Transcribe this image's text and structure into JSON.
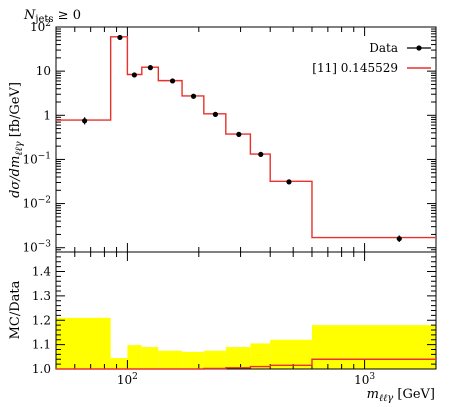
{
  "chart_data": {
    "type": "line",
    "title": "",
    "corner_label": "N_jets ≥ 0",
    "xlabel": "m_ℓℓγ [GeV]",
    "x_scale": "log",
    "xlim": [
      50,
      2000
    ],
    "x_tick_labels": [
      "10^2",
      "10^3"
    ],
    "main_panel": {
      "ylabel": "dσ/dm_ℓℓγ [fb/GeV]",
      "y_scale": "log",
      "ylim": [
        0.0008,
        100
      ],
      "y_tick_labels": [
        "10^-3",
        "10^-2",
        "10^-1",
        "1",
        "10",
        "10^2"
      ],
      "legend_position": "top-right",
      "series": [
        {
          "name": "Data",
          "style": "points with error bars",
          "color": "#000000",
          "points": [
            {
              "x": 66,
              "y": 0.75,
              "yerr_low": 0.62,
              "yerr_high": 0.9
            },
            {
              "x": 93,
              "y": 58,
              "yerr_low": 55,
              "yerr_high": 61
            },
            {
              "x": 107,
              "y": 8.2,
              "yerr_low": 7.6,
              "yerr_high": 8.8
            },
            {
              "x": 125,
              "y": 12,
              "yerr_low": 11.3,
              "yerr_high": 12.7
            },
            {
              "x": 155,
              "y": 6.0,
              "yerr_low": 5.6,
              "yerr_high": 6.4
            },
            {
              "x": 190,
              "y": 2.7,
              "yerr_low": 2.5,
              "yerr_high": 2.9
            },
            {
              "x": 235,
              "y": 1.05,
              "yerr_low": 0.97,
              "yerr_high": 1.13
            },
            {
              "x": 295,
              "y": 0.37,
              "yerr_low": 0.34,
              "yerr_high": 0.4
            },
            {
              "x": 365,
              "y": 0.13,
              "yerr_low": 0.12,
              "yerr_high": 0.14
            },
            {
              "x": 480,
              "y": 0.031,
              "yerr_low": 0.028,
              "yerr_high": 0.034
            },
            {
              "x": 1400,
              "y": 0.0016,
              "yerr_low": 0.00135,
              "yerr_high": 0.0019
            }
          ]
        },
        {
          "name": "[11] 0.145529",
          "style": "step",
          "color": "#e8312b",
          "bins": [
            {
              "lo": 50,
              "hi": 85,
              "y": 0.78
            },
            {
              "lo": 85,
              "hi": 100,
              "y": 60
            },
            {
              "lo": 100,
              "hi": 115,
              "y": 8.4
            },
            {
              "lo": 115,
              "hi": 135,
              "y": 12.3
            },
            {
              "lo": 135,
              "hi": 170,
              "y": 6.1
            },
            {
              "lo": 170,
              "hi": 210,
              "y": 2.75
            },
            {
              "lo": 210,
              "hi": 260,
              "y": 1.08
            },
            {
              "lo": 260,
              "hi": 330,
              "y": 0.375
            },
            {
              "lo": 330,
              "hi": 400,
              "y": 0.132
            },
            {
              "lo": 400,
              "hi": 600,
              "y": 0.032
            },
            {
              "lo": 600,
              "hi": 2000,
              "y": 0.0017
            }
          ]
        }
      ]
    },
    "ratio_panel": {
      "ylabel": "MC/Data",
      "ylim": [
        1.0,
        1.48
      ],
      "y_tick_labels": [
        "1.0",
        "1.1",
        "1.2",
        "1.3",
        "1.4"
      ],
      "band_color": "#ffff00",
      "band": [
        {
          "lo": 50,
          "hi": 85,
          "up": 1.21
        },
        {
          "lo": 85,
          "hi": 100,
          "up": 1.045
        },
        {
          "lo": 100,
          "hi": 115,
          "up": 1.098
        },
        {
          "lo": 115,
          "hi": 135,
          "up": 1.09
        },
        {
          "lo": 135,
          "hi": 170,
          "up": 1.075
        },
        {
          "lo": 170,
          "hi": 210,
          "up": 1.07
        },
        {
          "lo": 210,
          "hi": 260,
          "up": 1.075
        },
        {
          "lo": 260,
          "hi": 330,
          "up": 1.09
        },
        {
          "lo": 330,
          "hi": 400,
          "up": 1.105
        },
        {
          "lo": 400,
          "hi": 600,
          "up": 1.12
        },
        {
          "lo": 600,
          "hi": 2000,
          "up": 1.18
        }
      ],
      "ratio_line": [
        {
          "lo": 50,
          "hi": 85,
          "y": 1.0
        },
        {
          "lo": 85,
          "hi": 100,
          "y": 1.0
        },
        {
          "lo": 100,
          "hi": 115,
          "y": 1.0
        },
        {
          "lo": 115,
          "hi": 135,
          "y": 1.0
        },
        {
          "lo": 135,
          "hi": 170,
          "y": 1.0
        },
        {
          "lo": 170,
          "hi": 210,
          "y": 1.0
        },
        {
          "lo": 210,
          "hi": 260,
          "y": 1.002
        },
        {
          "lo": 260,
          "hi": 330,
          "y": 1.005
        },
        {
          "lo": 330,
          "hi": 400,
          "y": 1.01
        },
        {
          "lo": 400,
          "hi": 600,
          "y": 1.015
        },
        {
          "lo": 600,
          "hi": 2000,
          "y": 1.04
        }
      ]
    }
  }
}
